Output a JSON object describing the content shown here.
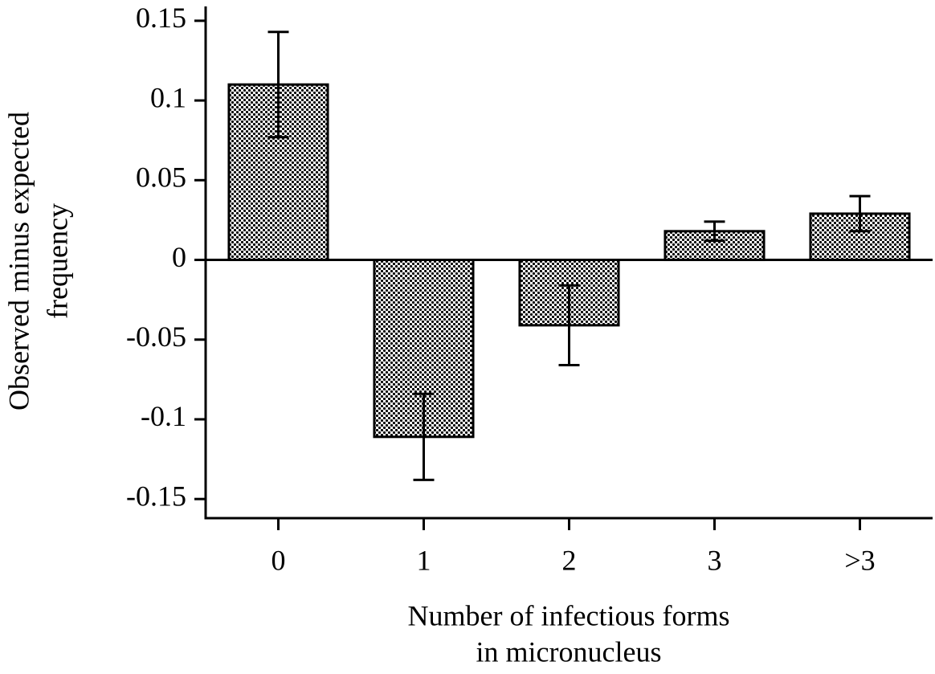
{
  "chart_data": {
    "type": "bar",
    "ylabel": [
      "Observed minus expected",
      "frequency"
    ],
    "xlabel": [
      "Number of infectious forms",
      "in micronucleus"
    ],
    "categories": [
      "0",
      "1",
      "2",
      "3",
      ">3"
    ],
    "values": [
      0.11,
      -0.111,
      -0.041,
      0.018,
      0.029
    ],
    "errors": [
      0.033,
      0.027,
      0.025,
      0.006,
      0.011
    ],
    "color": "#000000",
    "ylim": [
      -0.162,
      0.159
    ],
    "yticks": [
      0.15,
      0.1,
      0.05,
      0,
      -0.05,
      -0.1,
      -0.15
    ]
  }
}
